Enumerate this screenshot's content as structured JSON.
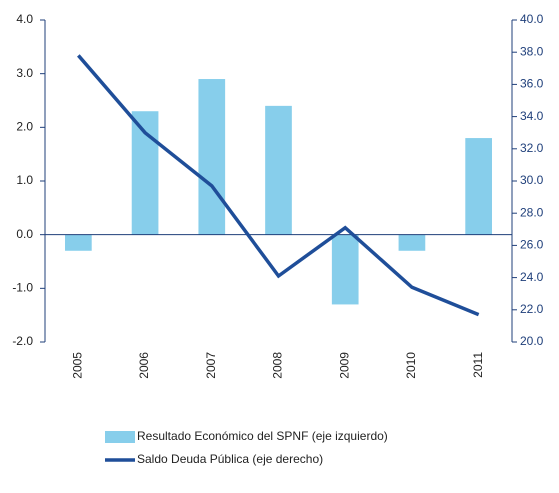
{
  "chart_data": {
    "type": "bar-line",
    "categories": [
      "2005",
      "2006",
      "2007",
      "2008",
      "2009",
      "2010",
      "2011"
    ],
    "series": [
      {
        "name": "Resultado Económico del SPNF (eje izquierdo)",
        "type": "bar",
        "color": "#87ceeb",
        "values": [
          -0.3,
          2.3,
          2.9,
          2.4,
          -1.3,
          -0.3,
          1.8
        ]
      },
      {
        "name": "Saldo Deuda Pública (eje derecho)",
        "type": "line",
        "axis": "y2",
        "color": "#1f4e99",
        "values": [
          37.8,
          33.0,
          29.7,
          24.1,
          27.1,
          23.4,
          21.7
        ]
      }
    ],
    "ylim": [
      -2,
      4
    ],
    "yticks": [
      {
        "value": -2,
        "label": "-2.0"
      },
      {
        "value": -1,
        "label": "-1.0"
      },
      {
        "value": 0,
        "label": "0.0"
      },
      {
        "value": 1,
        "label": "1.0"
      },
      {
        "value": 2,
        "label": "2.0"
      },
      {
        "value": 3,
        "label": "3.0"
      },
      {
        "value": 4,
        "label": "4.0"
      }
    ],
    "y2lim": [
      20,
      40
    ],
    "y2ticks": [
      {
        "value": 20,
        "label": "20.0"
      },
      {
        "value": 22,
        "label": "22.0"
      },
      {
        "value": 24,
        "label": "24.0"
      },
      {
        "value": 26,
        "label": "26.0"
      },
      {
        "value": 28,
        "label": "28.0"
      },
      {
        "value": 30,
        "label": "30.0"
      },
      {
        "value": 32,
        "label": "32.0"
      },
      {
        "value": 34,
        "label": "34.0"
      },
      {
        "value": 36,
        "label": "36.0"
      },
      {
        "value": 38,
        "label": "38.0"
      },
      {
        "value": 40,
        "label": "40.0"
      }
    ],
    "legend": "bottom"
  }
}
